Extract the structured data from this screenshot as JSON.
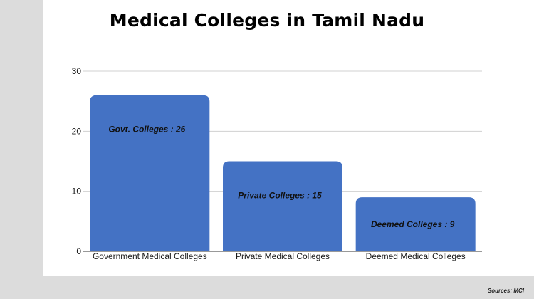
{
  "title": "Medical Colleges in Tamil Nadu",
  "source": "Sources: MCI",
  "colors": {
    "bar": "#4472c4",
    "grid": "#d0d0d0",
    "axis": "#333333",
    "label": "#1a1a1a"
  },
  "chart_data": {
    "type": "bar",
    "title": "Medical Colleges in Tamil Nadu",
    "categories": [
      "Government Medical Colleges",
      "Private Medical Colleges",
      "Deemed Medical Colleges"
    ],
    "values": [
      26,
      15,
      9
    ],
    "data_labels": [
      "Govt. Colleges : 26",
      "Private Colleges : 15",
      "Deemed Colleges : 9"
    ],
    "y_ticks": [
      0,
      10,
      20,
      30
    ],
    "ylim": [
      0,
      30
    ],
    "xlabel": "",
    "ylabel": "",
    "grid": true,
    "legend": "none"
  }
}
